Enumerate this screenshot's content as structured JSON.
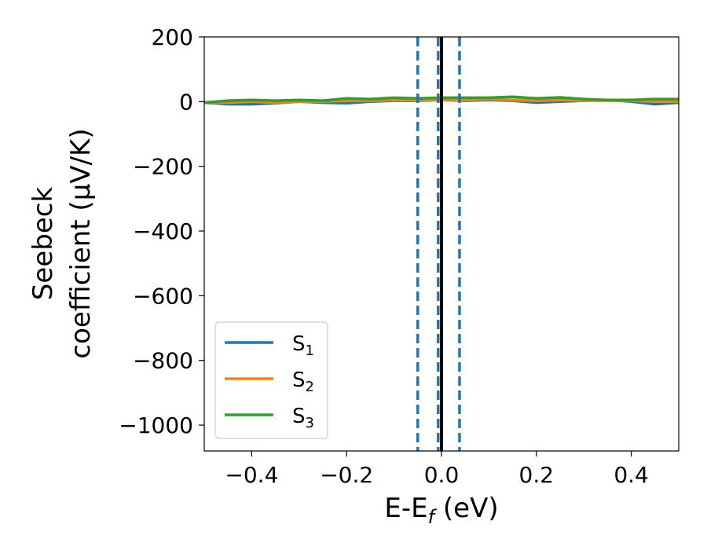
{
  "chart_data": {
    "type": "line",
    "title": "",
    "xlabel": "E-E",
    "xlabel_sub": "f",
    "xlabel_unit": " (eV)",
    "ylabel_line1": "Seebeck",
    "ylabel_line2": "coefficient  (μV/K)",
    "xlim": [
      -0.5,
      0.5
    ],
    "ylim": [
      -1080,
      200
    ],
    "x_ticks": [
      -0.4,
      -0.2,
      0.0,
      0.2,
      0.4
    ],
    "x_tick_labels": [
      "−0.4",
      "−0.2",
      "0.0",
      "0.2",
      "0.4"
    ],
    "y_ticks": [
      200,
      0,
      -200,
      -400,
      -600,
      -800,
      -1000
    ],
    "y_tick_labels": [
      "200",
      "0",
      "−200",
      "−400",
      "−600",
      "−800",
      "−1000"
    ],
    "grid": false,
    "legend_position": "lower-left",
    "x": [
      -0.5,
      -0.45,
      -0.4,
      -0.35,
      -0.3,
      -0.25,
      -0.2,
      -0.15,
      -0.1,
      -0.05,
      0.0,
      0.05,
      0.1,
      0.15,
      0.2,
      0.25,
      0.3,
      0.35,
      0.4,
      0.45,
      0.5
    ],
    "series": [
      {
        "name": "S",
        "sub": "1",
        "color": "#1f77b4",
        "values": [
          -3,
          -8,
          -8,
          -5,
          0,
          -3,
          -5,
          0,
          3,
          3,
          5,
          3,
          5,
          3,
          -3,
          0,
          3,
          5,
          0,
          -8,
          -3
        ]
      },
      {
        "name": "S",
        "sub": "2",
        "color": "#ff7f0e",
        "values": [
          -3,
          -3,
          0,
          -3,
          0,
          0,
          3,
          3,
          5,
          5,
          5,
          5,
          8,
          5,
          3,
          5,
          3,
          3,
          3,
          0,
          0
        ]
      },
      {
        "name": "S",
        "sub": "3",
        "color": "#2ca02c",
        "values": [
          -3,
          3,
          5,
          3,
          5,
          3,
          10,
          8,
          12,
          10,
          12,
          12,
          12,
          15,
          10,
          13,
          8,
          5,
          5,
          8,
          8
        ]
      }
    ],
    "vlines": [
      {
        "x": -0.05,
        "style": "dashed",
        "color": "#1f77b4"
      },
      {
        "x": -0.007,
        "style": "dashed",
        "color": "#1f77b4"
      },
      {
        "x": 0.038,
        "style": "dashed",
        "color": "#1f77b4"
      },
      {
        "x": 0.0,
        "style": "solid",
        "color": "#000000"
      }
    ]
  }
}
